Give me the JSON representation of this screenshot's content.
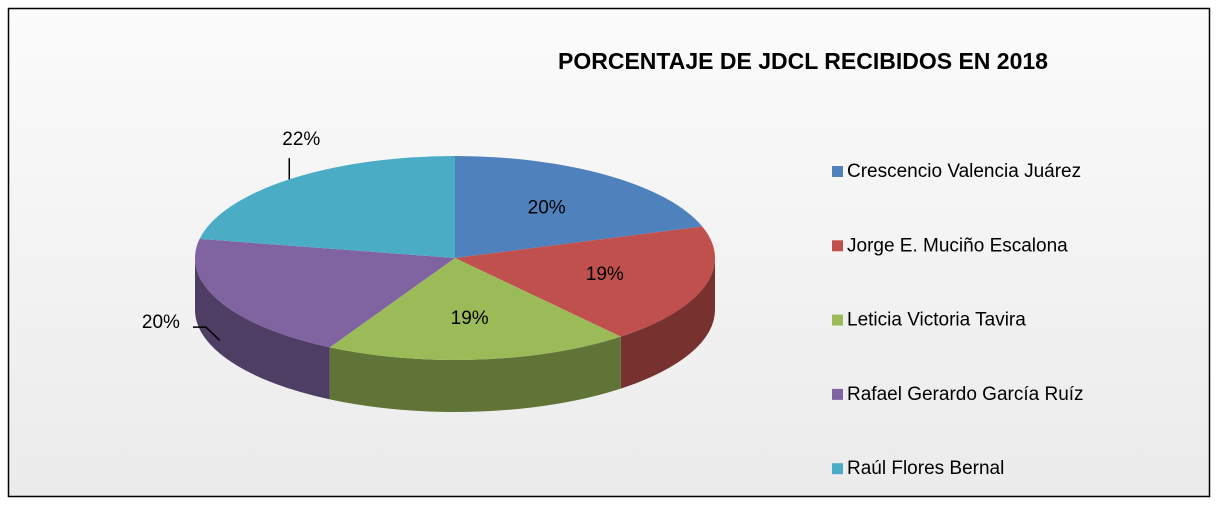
{
  "chart_data": {
    "type": "pie",
    "title": "PORCENTAJE DE JDCL RECIBIDOS EN  2018",
    "categories": [
      "Crescencio Valencia Juárez",
      "Jorge E. Muciño Escalona",
      "Leticia Victoria Tavira",
      "Rafael Gerardo García Ruíz",
      "Raúl Flores Bernal"
    ],
    "values": [
      20,
      19,
      19,
      20,
      22
    ],
    "value_labels": [
      "20%",
      "19%",
      "19%",
      "20%",
      "22%"
    ],
    "colors": [
      "#4f81bd",
      "#c0504d",
      "#9bbb59",
      "#8064a2",
      "#4bacc6"
    ],
    "legend": "right"
  }
}
